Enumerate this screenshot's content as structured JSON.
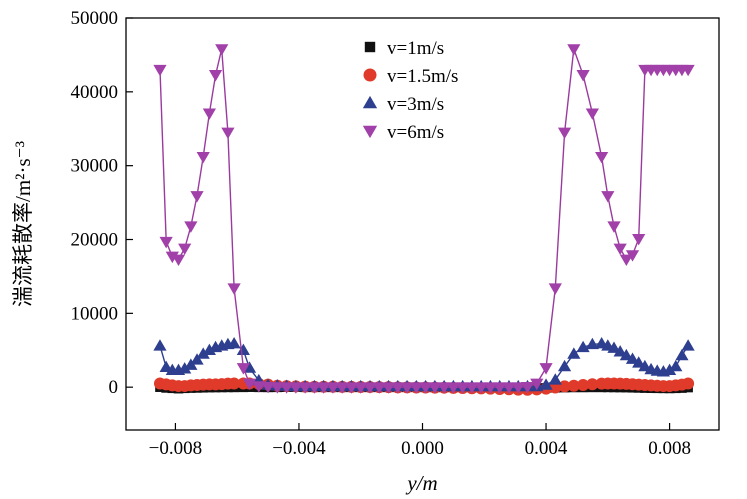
{
  "chart_data": {
    "type": "line",
    "xlabel": "y/m",
    "ylabel": "湍流耗散率/m²·s⁻³",
    "xlim": [
      -0.0096,
      0.0096
    ],
    "ylim": [
      -5800,
      50000
    ],
    "xticks": [
      -0.008,
      -0.004,
      0.0,
      0.004,
      0.008
    ],
    "xtick_labels": [
      "−0.008",
      "−0.004",
      "0.000",
      "0.004",
      "0.008"
    ],
    "yticks": [
      0,
      10000,
      20000,
      30000,
      40000,
      50000
    ],
    "ytick_labels": [
      "0",
      "10000",
      "20000",
      "30000",
      "40000",
      "50000"
    ],
    "legend_position": "top-center",
    "x": [
      -0.0085,
      -0.0083,
      -0.0081,
      -0.0079,
      -0.0077,
      -0.0075,
      -0.0073,
      -0.0071,
      -0.0069,
      -0.0067,
      -0.0065,
      -0.0063,
      -0.0061,
      -0.0058,
      -0.0056,
      -0.0053,
      -0.005,
      -0.0047,
      -0.0044,
      -0.0041,
      -0.0038,
      -0.0035,
      -0.0032,
      -0.0029,
      -0.0026,
      -0.0023,
      -0.002,
      -0.0017,
      -0.0014,
      -0.0011,
      -0.0008,
      -0.0005,
      -0.0002,
      0.0001,
      0.0004,
      0.0007,
      0.001,
      0.0013,
      0.0016,
      0.0019,
      0.0022,
      0.0025,
      0.0028,
      0.0031,
      0.0034,
      0.0037,
      0.004,
      0.0043,
      0.0046,
      0.0049,
      0.0052,
      0.0055,
      0.0058,
      0.006,
      0.0062,
      0.0064,
      0.0066,
      0.0068,
      0.007,
      0.0072,
      0.0074,
      0.0076,
      0.0078,
      0.008,
      0.0082,
      0.0084,
      0.0086
    ],
    "series": [
      {
        "name": "v=1m/s",
        "color": "#111111",
        "line_color": "#111111",
        "marker": "square",
        "values": [
          0,
          -100,
          -150,
          -200,
          -150,
          -120,
          -100,
          -80,
          -60,
          -50,
          -40,
          -30,
          -30,
          -20,
          0,
          -20,
          -30,
          -20,
          0,
          0,
          -20,
          -20,
          -20,
          -20,
          -20,
          -20,
          -20,
          -20,
          -20,
          -20,
          -20,
          -20,
          -20,
          -30,
          -30,
          -30,
          -30,
          -30,
          -30,
          -40,
          -60,
          -80,
          -100,
          -120,
          -140,
          -120,
          -100,
          -80,
          -60,
          -40,
          -40,
          -30,
          -30,
          -30,
          -40,
          -50,
          -60,
          -80,
          -100,
          -120,
          -140,
          -150,
          -160,
          -170,
          -150,
          -120,
          -50
        ]
      },
      {
        "name": "v=1.5m/s",
        "color": "#e03a2a",
        "line_color": "#e03a2a",
        "marker": "circle",
        "values": [
          500,
          380,
          250,
          150,
          150,
          250,
          300,
          350,
          380,
          380,
          420,
          480,
          500,
          500,
          500,
          450,
          350,
          200,
          150,
          100,
          80,
          60,
          50,
          50,
          40,
          40,
          30,
          20,
          10,
          0,
          -20,
          -30,
          -40,
          -50,
          -60,
          -70,
          -90,
          -110,
          -140,
          -170,
          -200,
          -240,
          -280,
          -330,
          -350,
          -300,
          -200,
          -50,
          100,
          200,
          300,
          400,
          480,
          500,
          500,
          480,
          450,
          400,
          350,
          300,
          250,
          200,
          150,
          150,
          250,
          350,
          500
        ]
      },
      {
        "name": "v=3m/s",
        "color": "#2e3f8f",
        "line_color": "#2e3f8f",
        "marker": "triangle-up",
        "values": [
          5600,
          2700,
          2300,
          2300,
          2500,
          3000,
          3700,
          4500,
          5000,
          5400,
          5600,
          5800,
          5900,
          5000,
          2600,
          900,
          300,
          200,
          150,
          100,
          100,
          100,
          100,
          100,
          100,
          100,
          100,
          100,
          100,
          100,
          100,
          100,
          100,
          100,
          100,
          100,
          100,
          100,
          100,
          100,
          100,
          100,
          100,
          100,
          100,
          100,
          300,
          1000,
          2800,
          4500,
          5400,
          5800,
          5900,
          5600,
          5300,
          4800,
          4300,
          3800,
          3300,
          2800,
          2400,
          2200,
          2100,
          2300,
          2800,
          4300,
          5600
        ]
      },
      {
        "name": "v=6m/s",
        "color": "#a040a8",
        "line_color": "#9b3a9e",
        "marker": "triangle-down",
        "values": [
          43000,
          19700,
          17700,
          17300,
          18800,
          21800,
          25900,
          31200,
          37100,
          42300,
          45800,
          34500,
          13400,
          2600,
          500,
          150,
          50,
          20,
          0,
          0,
          0,
          0,
          0,
          0,
          0,
          0,
          0,
          0,
          0,
          0,
          0,
          0,
          0,
          0,
          0,
          0,
          0,
          0,
          0,
          0,
          0,
          0,
          0,
          0,
          50,
          500,
          2600,
          13400,
          34500,
          45800,
          42300,
          37100,
          31200,
          25900,
          21800,
          18800,
          17300,
          17900,
          20100,
          43000,
          43000,
          43000,
          43000,
          43000,
          43000,
          43000,
          43000
        ]
      }
    ]
  }
}
